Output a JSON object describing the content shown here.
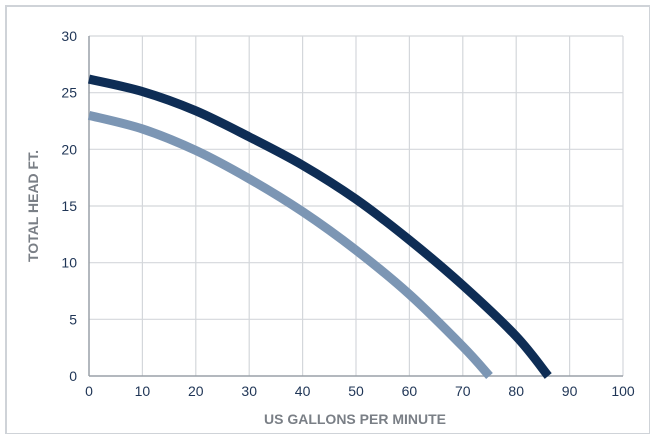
{
  "chart_data": {
    "type": "line",
    "title": "",
    "xlabel": "US GALLONS PER MINUTE",
    "ylabel": "TOTAL HEAD FT.",
    "xlim": [
      0,
      100
    ],
    "ylim": [
      0,
      30
    ],
    "x_ticks": [
      "0",
      "10",
      "20",
      "30",
      "40",
      "50",
      "60",
      "70",
      "80",
      "90",
      "100"
    ],
    "y_ticks": [
      "0",
      "5",
      "10",
      "15",
      "20",
      "25",
      "30"
    ],
    "grid": true,
    "legend": "none",
    "series": [
      {
        "color": "#0e2d55",
        "x": [
          0,
          10,
          20,
          30,
          40,
          50,
          60,
          70,
          80,
          86
        ],
        "y": [
          26.2,
          25.1,
          23.4,
          21.1,
          18.6,
          15.6,
          12.0,
          8.0,
          3.5,
          0
        ]
      },
      {
        "color": "#7c96b4",
        "x": [
          0,
          10,
          20,
          30,
          40,
          50,
          60,
          70,
          75
        ],
        "y": [
          23.0,
          21.8,
          19.9,
          17.4,
          14.5,
          11.1,
          7.2,
          2.6,
          0
        ]
      }
    ]
  }
}
